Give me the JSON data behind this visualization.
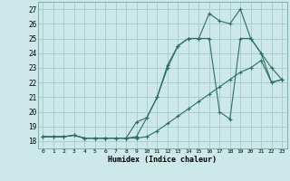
{
  "xlabel": "Humidex (Indice chaleur)",
  "xlim": [
    -0.5,
    23.5
  ],
  "ylim": [
    17.5,
    27.5
  ],
  "xticks": [
    0,
    1,
    2,
    3,
    4,
    5,
    6,
    7,
    8,
    9,
    10,
    11,
    12,
    13,
    14,
    15,
    16,
    17,
    18,
    19,
    20,
    21,
    22,
    23
  ],
  "yticks": [
    18,
    19,
    20,
    21,
    22,
    23,
    24,
    25,
    26,
    27
  ],
  "background_color": "#cce8e8",
  "grid_color": "#aacfcf",
  "line_color": "#2a7060",
  "line1_x": [
    0,
    1,
    2,
    3,
    4,
    5,
    6,
    7,
    8,
    9,
    10,
    11,
    12,
    13,
    14,
    15,
    16,
    17,
    18,
    19,
    20,
    21,
    22,
    23
  ],
  "line1_y": [
    18.3,
    18.3,
    18.3,
    18.4,
    18.2,
    18.2,
    18.2,
    18.2,
    18.2,
    18.3,
    19.6,
    21.0,
    23.2,
    24.5,
    25.0,
    25.0,
    26.7,
    26.2,
    26.0,
    27.0,
    25.0,
    24.0,
    22.0,
    22.2
  ],
  "line2_x": [
    0,
    1,
    2,
    3,
    4,
    5,
    6,
    7,
    8,
    9,
    10,
    11,
    12,
    13,
    14,
    15,
    16,
    17,
    18,
    19,
    20,
    21,
    22,
    23
  ],
  "line2_y": [
    18.3,
    18.3,
    18.3,
    18.4,
    18.2,
    18.2,
    18.2,
    18.2,
    18.2,
    19.3,
    19.6,
    21.0,
    23.0,
    24.5,
    25.0,
    25.0,
    25.0,
    20.0,
    19.5,
    25.0,
    25.0,
    24.0,
    23.0,
    22.2
  ],
  "line3_x": [
    0,
    1,
    2,
    3,
    4,
    5,
    6,
    7,
    8,
    9,
    10,
    11,
    12,
    13,
    14,
    15,
    16,
    17,
    18,
    19,
    20,
    21,
    22,
    23
  ],
  "line3_y": [
    18.3,
    18.3,
    18.3,
    18.4,
    18.2,
    18.2,
    18.2,
    18.2,
    18.2,
    18.2,
    18.3,
    18.7,
    19.2,
    19.7,
    20.2,
    20.7,
    21.2,
    21.7,
    22.2,
    22.7,
    23.0,
    23.5,
    22.0,
    22.2
  ]
}
